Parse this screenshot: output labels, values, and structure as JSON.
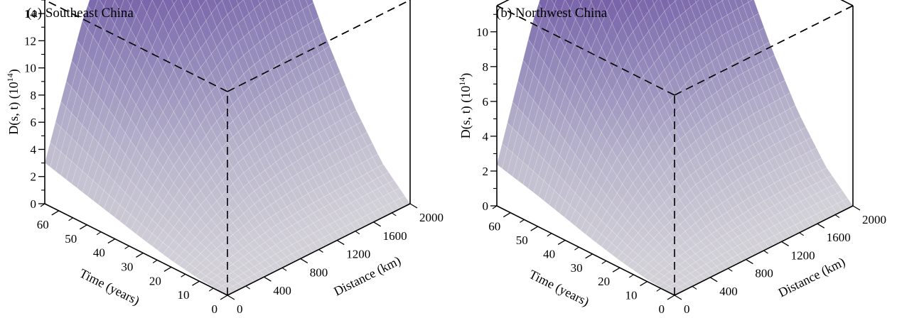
{
  "chart_data": [
    {
      "type": "surface",
      "title": "(a) Southeast China",
      "zlabel_main": "D(s, t) (10",
      "zlabel_sup": "14",
      "zlabel_end": ")",
      "xlabel": "Distance (km)",
      "ylabel": "Time (years)",
      "x_ticks": [
        0,
        400,
        800,
        1200,
        1600,
        2000
      ],
      "y_ticks": [
        0,
        10,
        20,
        30,
        40,
        50,
        60
      ],
      "z_ticks": [
        0,
        2,
        4,
        6,
        8,
        10,
        12,
        14
      ],
      "xlim": [
        0,
        2000
      ],
      "ylim": [
        0,
        65
      ],
      "zlim": [
        0,
        15
      ],
      "max_value": 15,
      "colormap": [
        "#d4d2d8",
        "#b7b3cb",
        "#8f84b8",
        "#6a4fa0",
        "#56308f"
      ],
      "surface_grid": {
        "distance_km": [
          0,
          400,
          800,
          1200,
          1600,
          2000
        ],
        "time_years": [
          0,
          10,
          20,
          30,
          40,
          50,
          60,
          65
        ],
        "D_1e14": [
          [
            0.0,
            0.0,
            0.0,
            0.0,
            0.0,
            0.0
          ],
          [
            0.1,
            0.6,
            1.0,
            1.2,
            1.3,
            1.4
          ],
          [
            0.35,
            1.6,
            2.6,
            3.1,
            3.4,
            3.6
          ],
          [
            0.7,
            2.9,
            4.6,
            5.6,
            6.1,
            6.4
          ],
          [
            1.1,
            4.4,
            7.0,
            8.5,
            9.3,
            9.7
          ],
          [
            1.5,
            6.1,
            9.6,
            11.6,
            12.6,
            13.1
          ],
          [
            1.9,
            7.6,
            11.9,
            14.2,
            14.8,
            14.9
          ],
          [
            2.1,
            8.3,
            12.8,
            15.0,
            15.0,
            15.0
          ]
        ]
      }
    },
    {
      "type": "surface",
      "title": "(b) Northwest China",
      "zlabel_main": "D(s, t) (10",
      "zlabel_sup": "14",
      "zlabel_end": ")",
      "xlabel": "Distance (km)",
      "ylabel": "Time (years)",
      "x_ticks": [
        0,
        400,
        800,
        1200,
        1600,
        2000
      ],
      "y_ticks": [
        0,
        10,
        20,
        30,
        40,
        50,
        60
      ],
      "z_ticks": [
        0,
        2,
        4,
        6,
        8,
        10
      ],
      "xlim": [
        0,
        2000
      ],
      "ylim": [
        0,
        65
      ],
      "zlim": [
        0,
        11.5
      ],
      "max_value": 12.2,
      "colormap": [
        "#d4d2d8",
        "#b7b3cb",
        "#8f84b8",
        "#6a4fa0",
        "#56308f"
      ],
      "surface_grid": {
        "distance_km": [
          0,
          400,
          800,
          1200,
          1600,
          2000
        ],
        "time_years": [
          0,
          10,
          20,
          30,
          40,
          50,
          60,
          65
        ],
        "D_1e14": [
          [
            0.0,
            0.0,
            0.0,
            0.0,
            0.0,
            0.0
          ],
          [
            0.08,
            0.5,
            0.8,
            1.0,
            1.1,
            1.1
          ],
          [
            0.3,
            1.3,
            2.1,
            2.5,
            2.7,
            2.8
          ],
          [
            0.6,
            2.4,
            3.8,
            4.5,
            4.9,
            5.0
          ],
          [
            0.95,
            3.7,
            5.8,
            6.9,
            7.4,
            7.6
          ],
          [
            1.3,
            5.1,
            8.0,
            9.4,
            10.1,
            10.3
          ],
          [
            1.6,
            6.4,
            10.0,
            11.6,
            12.0,
            12.1
          ],
          [
            1.75,
            7.0,
            10.9,
            12.2,
            12.2,
            12.2
          ]
        ]
      }
    }
  ]
}
